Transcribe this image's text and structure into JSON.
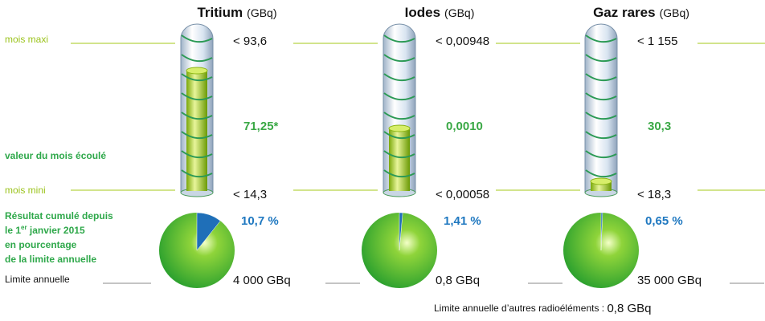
{
  "left_labels": {
    "max": "mois maxi",
    "value": "valeur du mois écoulé",
    "min": "mois mini",
    "cumul": [
      "Résultat cumulé depuis",
      "le 1",
      "er",
      " janvier 2015",
      "en pourcentage",
      "de la limite annuelle"
    ],
    "limit": "Limite annuelle"
  },
  "panels": [
    {
      "name": "Tritium",
      "unit": "(GBq)",
      "max": "< 93,6",
      "value": "71,25*",
      "min": "< 14,3",
      "percent": {
        "value": 10.7,
        "label": "10,7 %"
      },
      "limit": "4 000 GBq"
    },
    {
      "name": "Iodes",
      "unit": "(GBq)",
      "max": "< 0,00948",
      "value": "0,0010",
      "min": "< 0,00058",
      "percent": {
        "value": 1.41,
        "label": "1,41 %"
      },
      "limit": "0,8 GBq"
    },
    {
      "name": "Gaz rares",
      "unit": "(GBq)",
      "max": "< 1 155",
      "value": "30,3",
      "min": "< 18,3",
      "percent": {
        "value": 0.65,
        "label": "0,65 %"
      },
      "limit": "35 000 GBq"
    }
  ],
  "footer": {
    "text": "Limite annuelle d’autres radioéléments : ",
    "value": "0,8 GBq"
  }
}
